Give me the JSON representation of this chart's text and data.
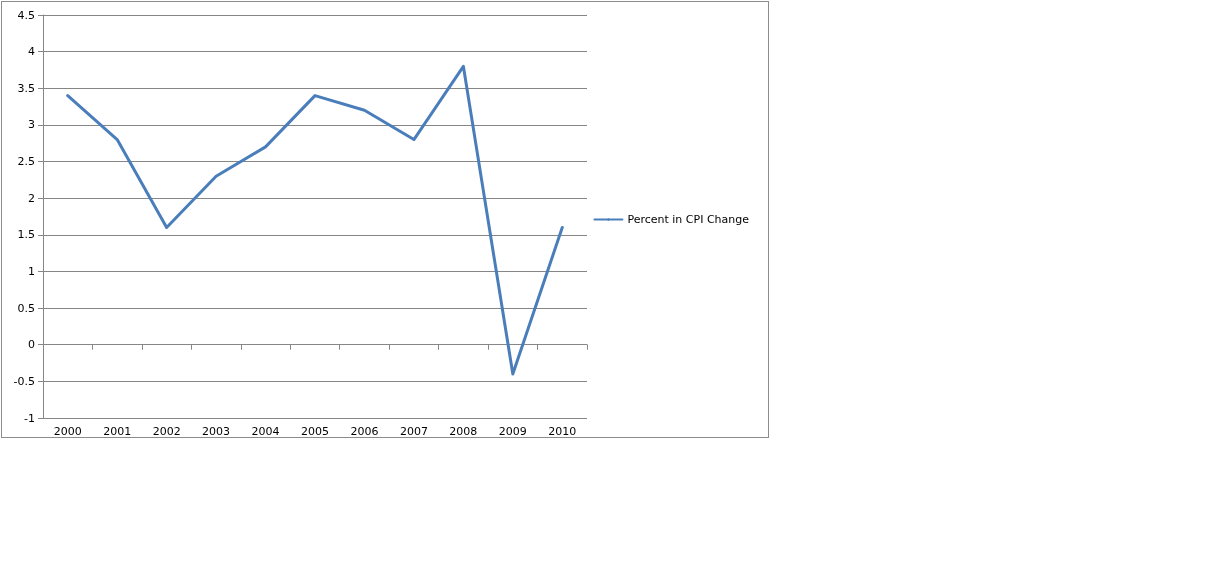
{
  "chart_data": {
    "type": "line",
    "categories": [
      "2000",
      "2001",
      "2002",
      "2003",
      "2004",
      "2005",
      "2006",
      "2007",
      "2008",
      "2009",
      "2010"
    ],
    "series": [
      {
        "name": "Percent in CPI Change",
        "color": "#4a7ebb",
        "values": [
          3.4,
          2.8,
          1.6,
          2.3,
          2.7,
          3.4,
          3.2,
          2.8,
          3.8,
          -0.4,
          1.6
        ]
      }
    ],
    "ylim": [
      -1,
      4.5
    ],
    "yticks": [
      -1,
      -0.5,
      0,
      0.5,
      1,
      1.5,
      2,
      2.5,
      3,
      3.5,
      4,
      4.5
    ],
    "grid": "y",
    "legend": "right",
    "marker": "none",
    "line_style": "solid"
  }
}
